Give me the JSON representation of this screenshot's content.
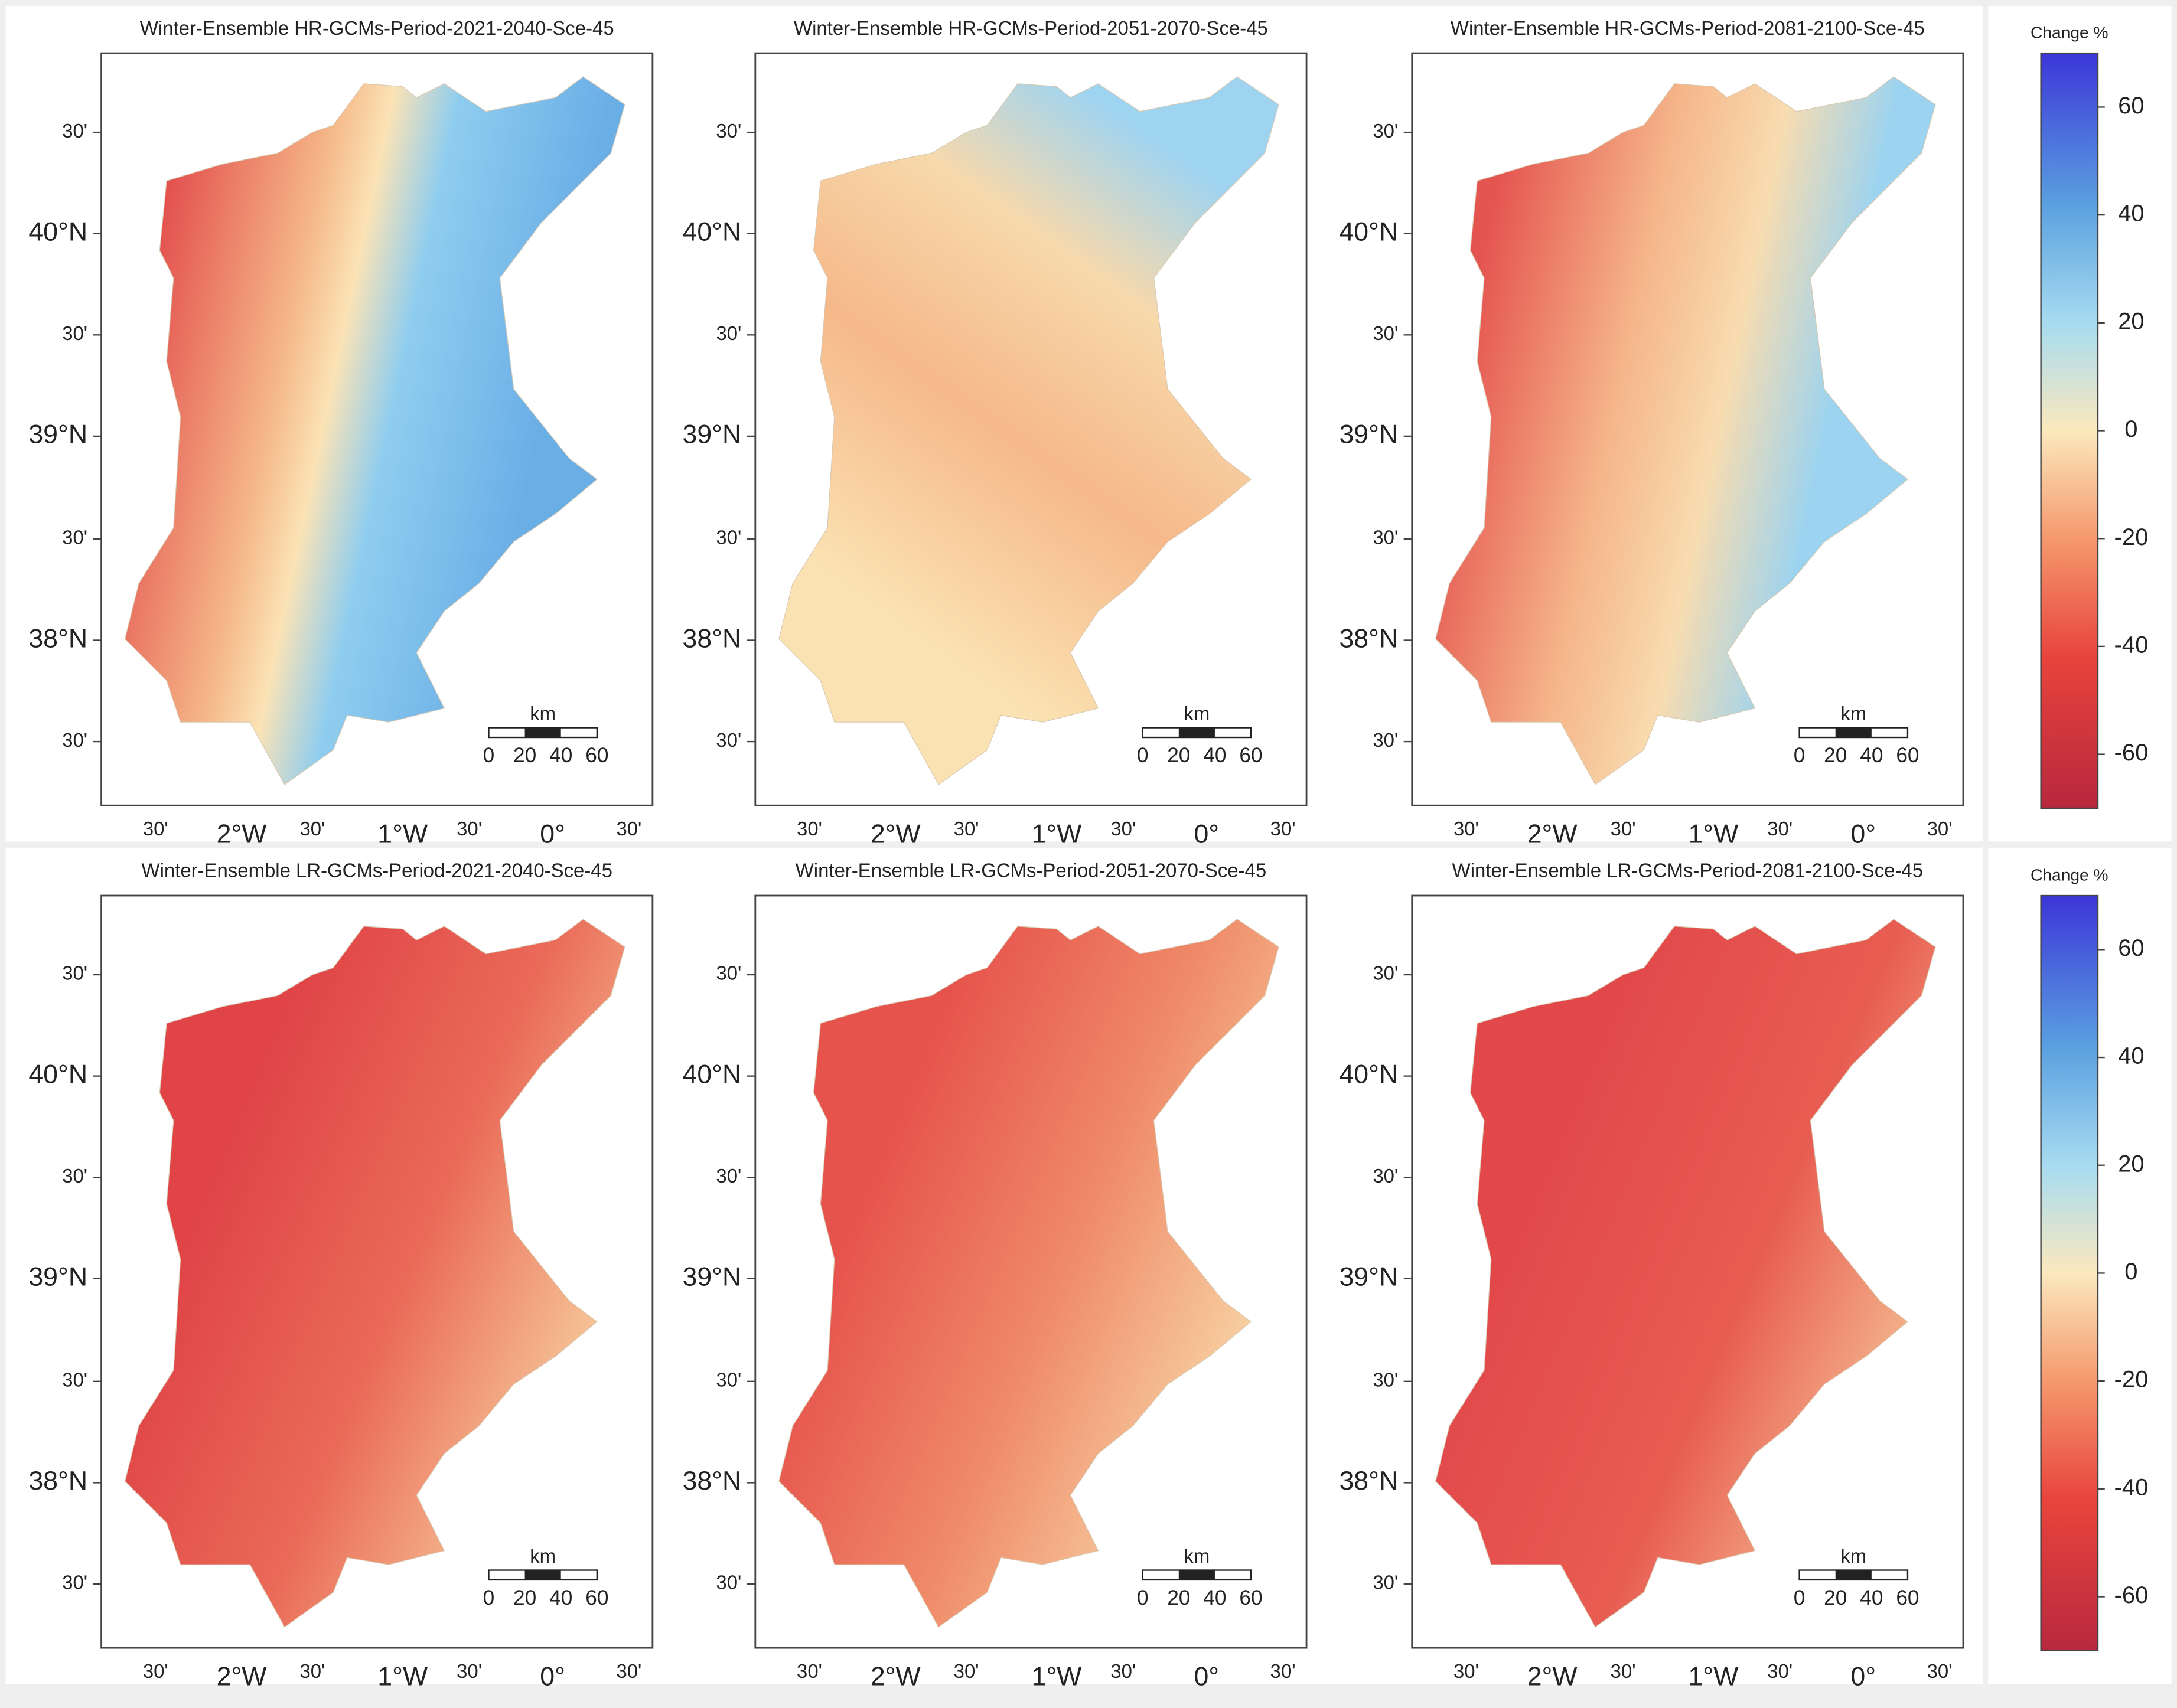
{
  "rows": [
    {
      "panels": [
        {
          "title": "Winter-Ensemble HR-GCMs-Period-2021-2040-Sce-45"
        },
        {
          "title": "Winter-Ensemble HR-GCMs-Period-2051-2070-Sce-45"
        },
        {
          "title": "Winter-Ensemble HR-GCMs-Period-2081-2100-Sce-45"
        }
      ],
      "colorbar": {
        "title": "Change %",
        "lim": [
          -70,
          70
        ],
        "ticks": [
          60,
          40,
          20,
          0,
          -20,
          -40,
          -60
        ]
      }
    },
    {
      "panels": [
        {
          "title": "Winter-Ensemble LR-GCMs-Period-2021-2040-Sce-45"
        },
        {
          "title": "Winter-Ensemble LR-GCMs-Period-2051-2070-Sce-45"
        },
        {
          "title": "Winter-Ensemble LR-GCMs-Period-2081-2100-Sce-45"
        }
      ],
      "colorbar": {
        "title": "Change %",
        "lim": [
          -70,
          70
        ],
        "ticks": [
          60,
          40,
          20,
          0,
          -20,
          -40,
          -60
        ]
      }
    }
  ],
  "lat_labels": [
    "30'",
    "40°N",
    "30'",
    "39°N",
    "30'",
    "38°N",
    "30'"
  ],
  "lon_labels": [
    "30'",
    "2°W",
    "30'",
    "1°W",
    "30'",
    "0°",
    "30'"
  ],
  "scale": {
    "unit": "km",
    "labels": [
      "0",
      "20",
      "40",
      "60"
    ]
  }
}
